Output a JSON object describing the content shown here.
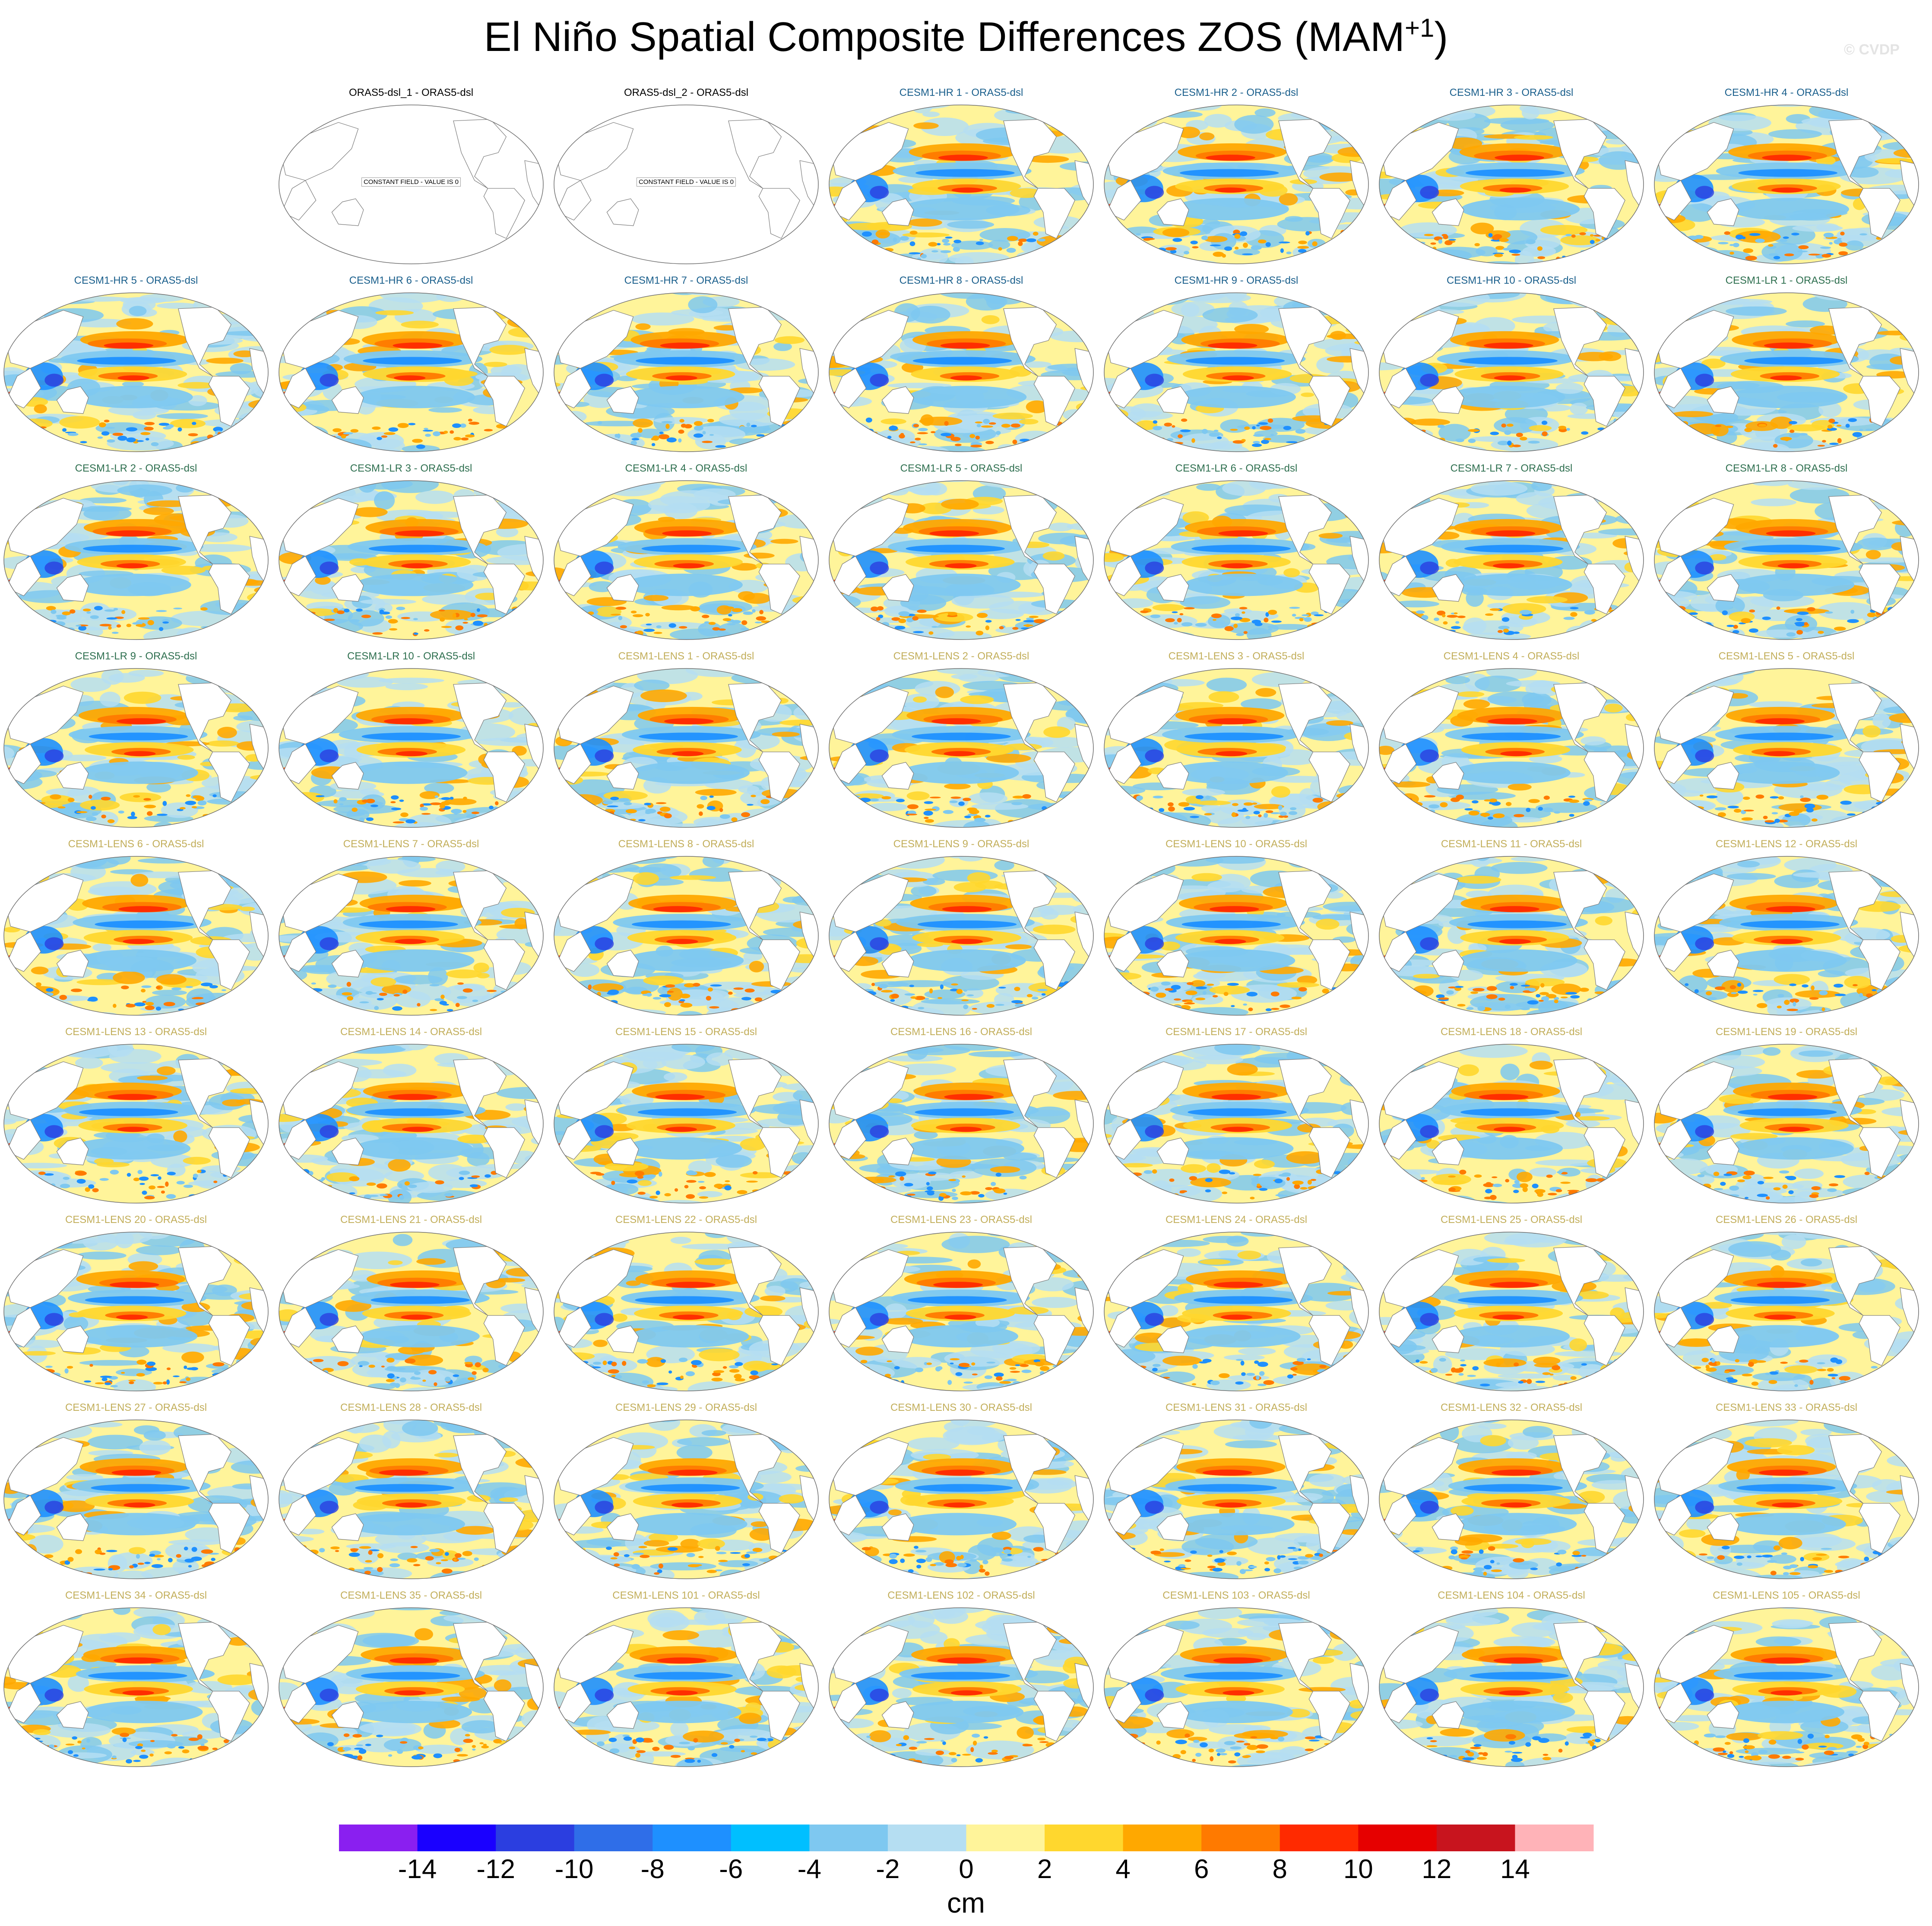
{
  "title": "El Niño Spatial Composite Differences ZOS (MAM",
  "title_sup": "+1",
  "title_close": ")",
  "watermark": "© CVDP",
  "constant_field_label": "CONSTANT FIELD - VALUE IS 0",
  "groups": {
    "obs": {
      "color": "#000000"
    },
    "hr": {
      "color": "#1a5f8c"
    },
    "lr": {
      "color": "#2e6f4f"
    },
    "lens": {
      "color": "#c2ae5a"
    }
  },
  "panels": [
    {
      "label": "ORAS5-dsl_1 - ORAS5-dsl",
      "group": "obs",
      "constant": true
    },
    {
      "label": "ORAS5-dsl_2 - ORAS5-dsl",
      "group": "obs",
      "constant": true
    },
    {
      "label": "CESM1-HR 1 - ORAS5-dsl",
      "group": "hr"
    },
    {
      "label": "CESM1-HR 2 - ORAS5-dsl",
      "group": "hr"
    },
    {
      "label": "CESM1-HR 3 - ORAS5-dsl",
      "group": "hr"
    },
    {
      "label": "CESM1-HR 4 - ORAS5-dsl",
      "group": "hr"
    },
    {
      "label": "CESM1-HR 5 - ORAS5-dsl",
      "group": "hr"
    },
    {
      "label": "CESM1-HR 6 - ORAS5-dsl",
      "group": "hr"
    },
    {
      "label": "CESM1-HR 7 - ORAS5-dsl",
      "group": "hr"
    },
    {
      "label": "CESM1-HR 8 - ORAS5-dsl",
      "group": "hr"
    },
    {
      "label": "CESM1-HR 9 - ORAS5-dsl",
      "group": "hr"
    },
    {
      "label": "CESM1-HR 10 - ORAS5-dsl",
      "group": "hr"
    },
    {
      "label": "CESM1-LR 1 - ORAS5-dsl",
      "group": "lr"
    },
    {
      "label": "CESM1-LR 2 - ORAS5-dsl",
      "group": "lr"
    },
    {
      "label": "CESM1-LR 3 - ORAS5-dsl",
      "group": "lr"
    },
    {
      "label": "CESM1-LR 4 - ORAS5-dsl",
      "group": "lr"
    },
    {
      "label": "CESM1-LR 5 - ORAS5-dsl",
      "group": "lr"
    },
    {
      "label": "CESM1-LR 6 - ORAS5-dsl",
      "group": "lr"
    },
    {
      "label": "CESM1-LR 7 - ORAS5-dsl",
      "group": "lr"
    },
    {
      "label": "CESM1-LR 8 - ORAS5-dsl",
      "group": "lr"
    },
    {
      "label": "CESM1-LR 9 - ORAS5-dsl",
      "group": "lr"
    },
    {
      "label": "CESM1-LR 10 - ORAS5-dsl",
      "group": "lr"
    },
    {
      "label": "CESM1-LENS 1 - ORAS5-dsl",
      "group": "lens"
    },
    {
      "label": "CESM1-LENS 2 - ORAS5-dsl",
      "group": "lens"
    },
    {
      "label": "CESM1-LENS 3 - ORAS5-dsl",
      "group": "lens"
    },
    {
      "label": "CESM1-LENS 4 - ORAS5-dsl",
      "group": "lens"
    },
    {
      "label": "CESM1-LENS 5 - ORAS5-dsl",
      "group": "lens"
    },
    {
      "label": "CESM1-LENS 6 - ORAS5-dsl",
      "group": "lens"
    },
    {
      "label": "CESM1-LENS 7 - ORAS5-dsl",
      "group": "lens"
    },
    {
      "label": "CESM1-LENS 8 - ORAS5-dsl",
      "group": "lens"
    },
    {
      "label": "CESM1-LENS 9 - ORAS5-dsl",
      "group": "lens"
    },
    {
      "label": "CESM1-LENS 10 - ORAS5-dsl",
      "group": "lens"
    },
    {
      "label": "CESM1-LENS 11 - ORAS5-dsl",
      "group": "lens"
    },
    {
      "label": "CESM1-LENS 12 - ORAS5-dsl",
      "group": "lens"
    },
    {
      "label": "CESM1-LENS 13 - ORAS5-dsl",
      "group": "lens"
    },
    {
      "label": "CESM1-LENS 14 - ORAS5-dsl",
      "group": "lens"
    },
    {
      "label": "CESM1-LENS 15 - ORAS5-dsl",
      "group": "lens"
    },
    {
      "label": "CESM1-LENS 16 - ORAS5-dsl",
      "group": "lens"
    },
    {
      "label": "CESM1-LENS 17 - ORAS5-dsl",
      "group": "lens"
    },
    {
      "label": "CESM1-LENS 18 - ORAS5-dsl",
      "group": "lens"
    },
    {
      "label": "CESM1-LENS 19 - ORAS5-dsl",
      "group": "lens"
    },
    {
      "label": "CESM1-LENS 20 - ORAS5-dsl",
      "group": "lens"
    },
    {
      "label": "CESM1-LENS 21 - ORAS5-dsl",
      "group": "lens"
    },
    {
      "label": "CESM1-LENS 22 - ORAS5-dsl",
      "group": "lens"
    },
    {
      "label": "CESM1-LENS 23 - ORAS5-dsl",
      "group": "lens"
    },
    {
      "label": "CESM1-LENS 24 - ORAS5-dsl",
      "group": "lens"
    },
    {
      "label": "CESM1-LENS 25 - ORAS5-dsl",
      "group": "lens"
    },
    {
      "label": "CESM1-LENS 26 - ORAS5-dsl",
      "group": "lens"
    },
    {
      "label": "CESM1-LENS 27 - ORAS5-dsl",
      "group": "lens"
    },
    {
      "label": "CESM1-LENS 28 - ORAS5-dsl",
      "group": "lens"
    },
    {
      "label": "CESM1-LENS 29 - ORAS5-dsl",
      "group": "lens"
    },
    {
      "label": "CESM1-LENS 30 - ORAS5-dsl",
      "group": "lens"
    },
    {
      "label": "CESM1-LENS 31 - ORAS5-dsl",
      "group": "lens"
    },
    {
      "label": "CESM1-LENS 32 - ORAS5-dsl",
      "group": "lens"
    },
    {
      "label": "CESM1-LENS 33 - ORAS5-dsl",
      "group": "lens"
    },
    {
      "label": "CESM1-LENS 34 - ORAS5-dsl",
      "group": "lens"
    },
    {
      "label": "CESM1-LENS 35 - ORAS5-dsl",
      "group": "lens"
    },
    {
      "label": "CESM1-LENS 101 - ORAS5-dsl",
      "group": "lens"
    },
    {
      "label": "CESM1-LENS 102 - ORAS5-dsl",
      "group": "lens"
    },
    {
      "label": "CESM1-LENS 103 - ORAS5-dsl",
      "group": "lens"
    },
    {
      "label": "CESM1-LENS 104 - ORAS5-dsl",
      "group": "lens"
    },
    {
      "label": "CESM1-LENS 105 - ORAS5-dsl",
      "group": "lens"
    }
  ],
  "chart_data": {
    "type": "heatmap",
    "title": "El Niño Spatial Composite Differences ZOS (MAM+1)",
    "units": "cm",
    "colorbar": {
      "ticks": [
        -14,
        -12,
        -10,
        -8,
        -6,
        -4,
        -2,
        0,
        2,
        4,
        6,
        8,
        10,
        12,
        14
      ],
      "colors": [
        "#8a1ff0",
        "#1a00ff",
        "#2b3ee0",
        "#2f6ee8",
        "#1e90ff",
        "#00bfff",
        "#7ec8f0",
        "#b5def2",
        "#fff49a",
        "#ffd72e",
        "#ffa800",
        "#ff7a00",
        "#ff2a00",
        "#e60000",
        "#c8141e",
        "#ffb3b8"
      ]
    },
    "panel_count": 62
  }
}
